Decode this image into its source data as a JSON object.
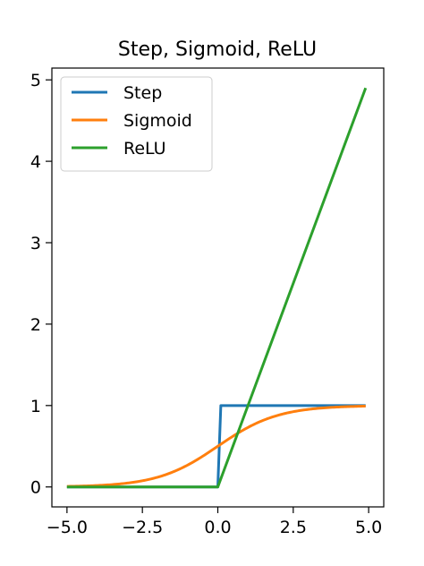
{
  "chart_data": {
    "type": "line",
    "title": "Step, Sigmoid, ReLU",
    "xlabel": "",
    "ylabel": "",
    "xlim": [
      -5.5,
      5.5
    ],
    "ylim": [
      -0.245,
      5.145
    ],
    "xticks": [
      -5.0,
      -2.5,
      0.0,
      2.5,
      5.0
    ],
    "xtick_labels": [
      "−5.0",
      "−2.5",
      "0.0",
      "2.5",
      "5.0"
    ],
    "yticks": [
      0,
      1,
      2,
      3,
      4,
      5
    ],
    "ytick_labels": [
      "0",
      "1",
      "2",
      "3",
      "4",
      "5"
    ],
    "grid": false,
    "legend_position": "top-left",
    "series": [
      {
        "name": "Step",
        "color": "#1f77b4",
        "function": "step",
        "points": [
          [
            -5.0,
            0
          ],
          [
            0.0,
            0
          ],
          [
            0.1,
            1
          ],
          [
            4.9,
            1
          ]
        ]
      },
      {
        "name": "Sigmoid",
        "color": "#ff7f0e",
        "function": "sigmoid",
        "points": [
          [
            -5.0,
            0.0067
          ],
          [
            -4.0,
            0.018
          ],
          [
            -3.0,
            0.047
          ],
          [
            -2.0,
            0.119
          ],
          [
            -1.0,
            0.269
          ],
          [
            0.0,
            0.5
          ],
          [
            1.0,
            0.731
          ],
          [
            2.0,
            0.881
          ],
          [
            3.0,
            0.953
          ],
          [
            4.0,
            0.982
          ],
          [
            4.9,
            0.993
          ]
        ]
      },
      {
        "name": "ReLU",
        "color": "#2ca02c",
        "function": "relu",
        "points": [
          [
            -5.0,
            0
          ],
          [
            0.0,
            0
          ],
          [
            4.9,
            4.9
          ]
        ]
      }
    ]
  }
}
